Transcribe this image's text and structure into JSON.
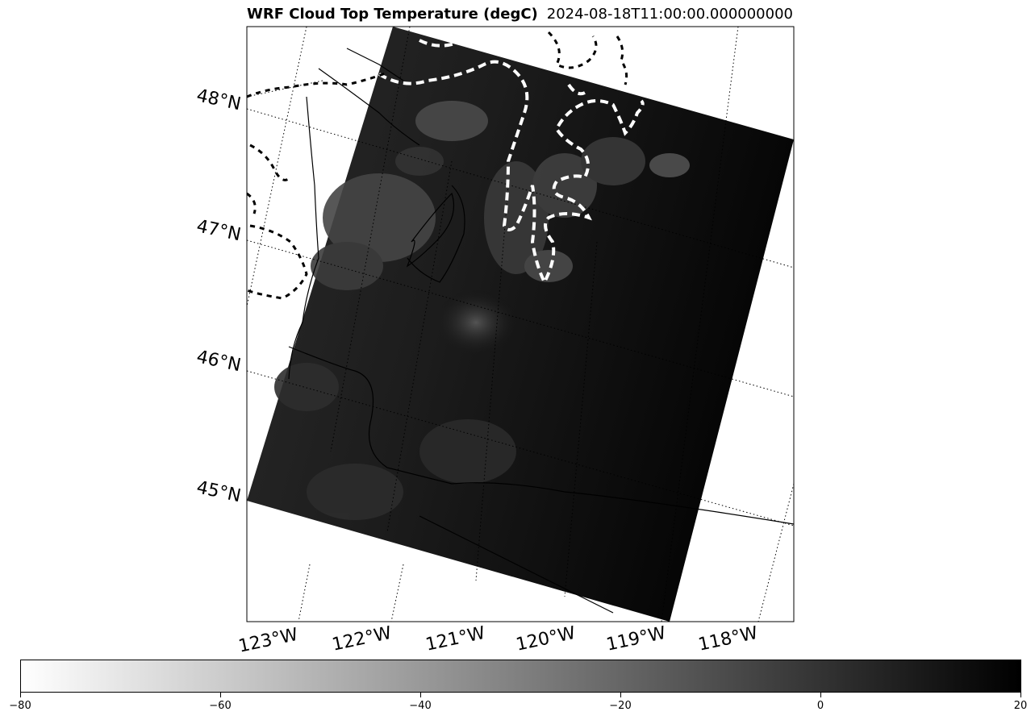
{
  "title": {
    "main": "WRF Cloud Top Temperature (degC)",
    "timestamp": "2024-08-18T11:00:00.000000000"
  },
  "latitude_labels": [
    "48°N",
    "47°N",
    "46°N",
    "45°N"
  ],
  "longitude_labels": [
    "123°W",
    "122°W",
    "121°W",
    "120°W",
    "119°W",
    "118°W"
  ],
  "colorbar": {
    "colormap": "Greys",
    "min": -80,
    "max": 20,
    "ticks": [
      "−80",
      "−60",
      "−40",
      "−20",
      "0",
      "20"
    ],
    "colors": {
      "low": "#ffffff",
      "high": "#000000"
    }
  }
}
